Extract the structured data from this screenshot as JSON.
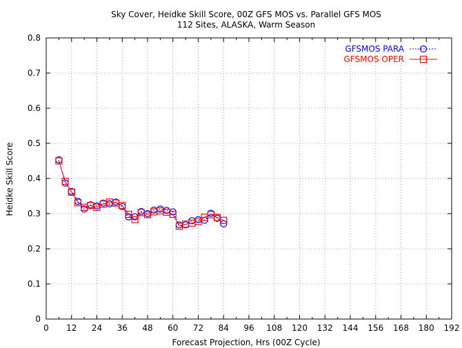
{
  "chart_data": {
    "type": "line",
    "title": "Sky Cover, Heidke Skill Score, 00Z GFS MOS vs. Parallel GFS MOS",
    "subtitle": "112 Sites, ALASKA, Warm Season",
    "xlabel": "Forecast Projection, Hrs (00Z Cycle)",
    "ylabel": "Heidke Skill Score",
    "xlim": [
      0,
      192
    ],
    "ylim": [
      0,
      0.8
    ],
    "x_ticks": [
      0,
      12,
      24,
      36,
      48,
      60,
      72,
      84,
      96,
      108,
      120,
      132,
      144,
      156,
      168,
      180,
      192
    ],
    "y_ticks": [
      0,
      0.1,
      0.2,
      0.3,
      0.4,
      0.5,
      0.6,
      0.7,
      0.8
    ],
    "y_tick_labels": [
      "0",
      "0.1",
      "0.2",
      "0.3",
      "0.4",
      "0.5",
      "0.6",
      "0.7",
      "0.8"
    ],
    "grid": true,
    "legend_position": "top-right",
    "x": [
      6,
      9,
      12,
      15,
      18,
      21,
      24,
      27,
      30,
      33,
      36,
      39,
      42,
      45,
      48,
      51,
      54,
      57,
      60,
      63,
      66,
      69,
      72,
      75,
      78,
      81,
      84
    ],
    "series": [
      {
        "name": "GFSMOS PARA",
        "color": "#0000ff",
        "line_style": "dotted",
        "marker": "circle",
        "values": [
          0.453,
          0.387,
          0.363,
          0.335,
          0.313,
          0.325,
          0.322,
          0.33,
          0.328,
          0.333,
          0.32,
          0.291,
          0.291,
          0.306,
          0.3,
          0.31,
          0.313,
          0.309,
          0.305,
          0.268,
          0.268,
          0.28,
          0.283,
          0.281,
          0.301,
          0.287,
          0.271
        ]
      },
      {
        "name": "GFSMOS OPER",
        "color": "#ff0000",
        "line_style": "solid",
        "marker": "square",
        "values": [
          0.45,
          0.392,
          0.361,
          0.331,
          0.318,
          0.323,
          0.318,
          0.327,
          0.333,
          0.33,
          0.323,
          0.298,
          0.283,
          0.303,
          0.297,
          0.305,
          0.308,
          0.304,
          0.298,
          0.264,
          0.27,
          0.273,
          0.278,
          0.29,
          0.297,
          0.289,
          0.281
        ]
      }
    ]
  }
}
